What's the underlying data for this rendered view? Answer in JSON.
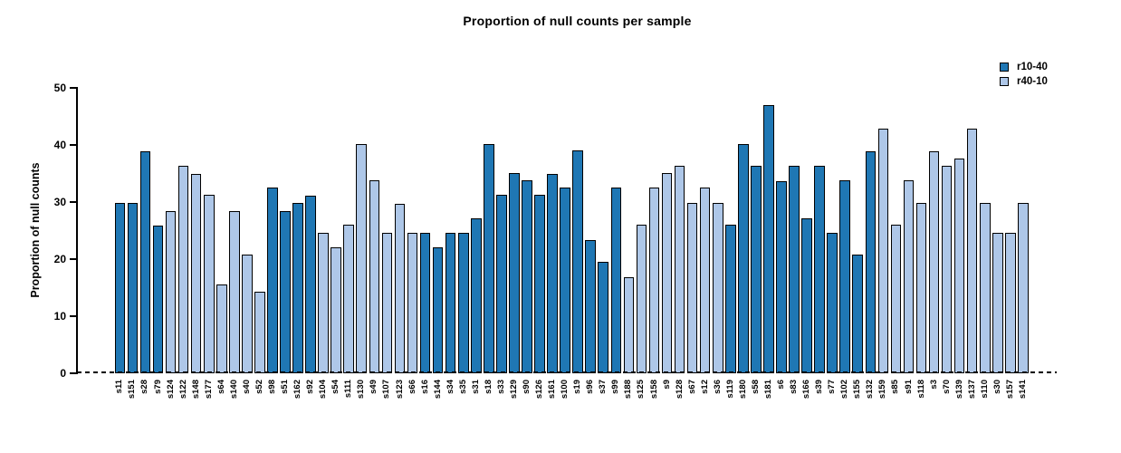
{
  "chart_data": {
    "type": "bar",
    "title": "Proportion of null counts per sample",
    "ylabel": "Proportion of null counts",
    "xlabel": "",
    "ylim": [
      0,
      50
    ],
    "yticks": [
      0,
      10,
      20,
      30,
      40,
      50
    ],
    "grid": false,
    "legend_position": "top-right",
    "zero_line_style": "dashed",
    "bar_edge_color": "#000000",
    "legend": [
      {
        "name": "r10-40",
        "color": "#1f77b4"
      },
      {
        "name": "r40-10",
        "color": "#aec7e8"
      }
    ],
    "categories": [
      "s11",
      "s151",
      "s28",
      "s79",
      "s124",
      "s122",
      "s148",
      "s177",
      "s64",
      "s140",
      "s40",
      "s52",
      "s98",
      "s51",
      "s162",
      "s92",
      "s104",
      "s54",
      "s111",
      "s130",
      "s49",
      "s107",
      "s123",
      "s66",
      "s16",
      "s144",
      "s34",
      "s35",
      "s31",
      "s18",
      "s33",
      "s129",
      "s90",
      "s126",
      "s161",
      "s100",
      "s19",
      "s96",
      "s37",
      "s99",
      "s188",
      "s125",
      "s158",
      "s9",
      "s128",
      "s67",
      "s12",
      "s36",
      "s119",
      "s180",
      "s58",
      "s181",
      "s6",
      "s83",
      "s166",
      "s39",
      "s77",
      "s102",
      "s155",
      "s132",
      "s159",
      "s85",
      "s91",
      "s118",
      "s3",
      "s70",
      "s139",
      "s137",
      "s110",
      "s30",
      "s157",
      "s141"
    ],
    "values": [
      29.8,
      29.8,
      38.9,
      25.9,
      28.5,
      36.4,
      35.0,
      31.3,
      15.6,
      28.5,
      20.8,
      14.3,
      32.5,
      28.5,
      29.8,
      31.1,
      24.6,
      22.0,
      26.0,
      40.2,
      33.8,
      24.6,
      29.7,
      24.6,
      24.6,
      22.1,
      24.6,
      24.6,
      27.2,
      40.2,
      31.2,
      35.1,
      33.8,
      31.2,
      35.0,
      32.6,
      39.0,
      23.3,
      19.5,
      32.5,
      16.8,
      26.0,
      32.5,
      35.1,
      36.4,
      29.8,
      32.5,
      29.8,
      26.0,
      40.2,
      36.4,
      47.0,
      33.7,
      36.4,
      27.2,
      36.4,
      24.6,
      33.8,
      20.8,
      38.9,
      42.9,
      26.0,
      33.8,
      29.8,
      38.9,
      36.4,
      37.7,
      42.9,
      29.8,
      24.6,
      24.6,
      29.8
    ],
    "groups": [
      "r10-40",
      "r10-40",
      "r10-40",
      "r10-40",
      "r40-10",
      "r40-10",
      "r40-10",
      "r40-10",
      "r40-10",
      "r40-10",
      "r40-10",
      "r40-10",
      "r10-40",
      "r10-40",
      "r10-40",
      "r10-40",
      "r40-10",
      "r40-10",
      "r40-10",
      "r40-10",
      "r40-10",
      "r40-10",
      "r40-10",
      "r40-10",
      "r10-40",
      "r10-40",
      "r10-40",
      "r10-40",
      "r10-40",
      "r10-40",
      "r10-40",
      "r10-40",
      "r10-40",
      "r10-40",
      "r10-40",
      "r10-40",
      "r10-40",
      "r10-40",
      "r10-40",
      "r10-40",
      "r40-10",
      "r40-10",
      "r40-10",
      "r40-10",
      "r40-10",
      "r40-10",
      "r40-10",
      "r40-10",
      "r10-40",
      "r10-40",
      "r10-40",
      "r10-40",
      "r10-40",
      "r10-40",
      "r10-40",
      "r10-40",
      "r10-40",
      "r10-40",
      "r10-40",
      "r10-40",
      "r40-10",
      "r40-10",
      "r40-10",
      "r40-10",
      "r40-10",
      "r40-10",
      "r40-10",
      "r40-10",
      "r40-10",
      "r40-10",
      "r40-10",
      "r40-10"
    ]
  }
}
